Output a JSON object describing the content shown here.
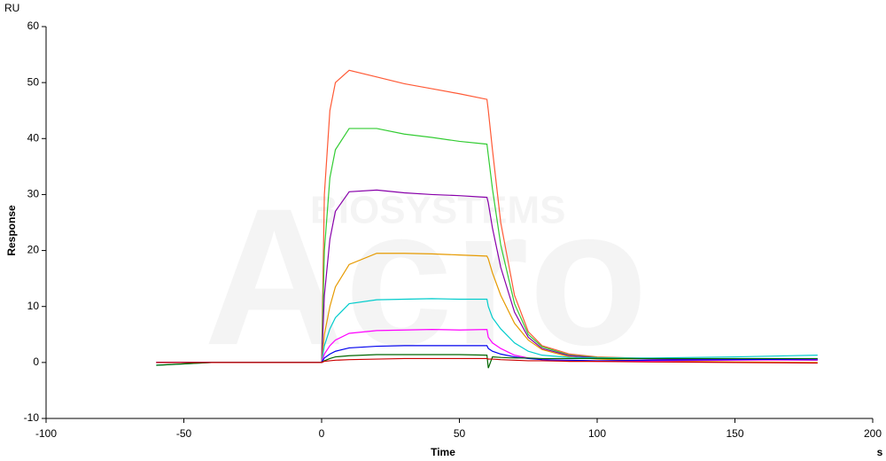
{
  "chart_data": {
    "type": "line",
    "y_unit": "RU",
    "y_label": "Response",
    "x_label": "Time",
    "x_unit": "s",
    "watermark": [
      "Acro",
      "BIOSYSTEMS"
    ],
    "xlim": [
      -100,
      200
    ],
    "xticks": [
      -100,
      -50,
      0,
      50,
      100,
      150,
      200
    ],
    "ylim": [
      -10,
      60
    ],
    "yticks": [
      -10,
      0,
      10,
      20,
      30,
      40,
      50,
      60
    ],
    "x": [
      -60,
      -40,
      -20,
      -1,
      0,
      1,
      3,
      5,
      10,
      20,
      30,
      40,
      50,
      60,
      60.5,
      62,
      65,
      70,
      75,
      80,
      90,
      100,
      120,
      150,
      180
    ],
    "series": [
      {
        "color": "#ff5a36",
        "values": [
          0,
          0,
          0,
          0,
          0,
          30,
          45,
          50,
          52.2,
          51,
          49.8,
          48.9,
          48,
          47,
          45,
          38,
          25,
          12,
          5.5,
          3,
          1.5,
          1,
          0.7,
          0.6,
          0.5
        ]
      },
      {
        "color": "#33cc33",
        "values": [
          0,
          0,
          0,
          0,
          0,
          20,
          33,
          38,
          41.8,
          41.8,
          40.8,
          40.2,
          39.5,
          39,
          37,
          31,
          21,
          10.5,
          5,
          2.8,
          1.3,
          0.9,
          0.7,
          0.6,
          0.5
        ]
      },
      {
        "color": "#8800aa",
        "values": [
          0,
          0,
          0,
          0,
          0,
          12,
          22,
          27,
          30.5,
          30.8,
          30.3,
          30,
          29.8,
          29.5,
          28.5,
          24,
          17,
          9,
          4.5,
          2.5,
          1.2,
          0.8,
          0.6,
          0.5,
          0.4
        ]
      },
      {
        "color": "#e69a00",
        "values": [
          0,
          0,
          0,
          0,
          0,
          5,
          10,
          13.5,
          17.5,
          19.5,
          19.5,
          19.4,
          19.2,
          19,
          18.5,
          16,
          12,
          7,
          4,
          2.3,
          1,
          0.6,
          0.3,
          0.1,
          0
        ]
      },
      {
        "color": "#00cccc",
        "values": [
          -0.5,
          0,
          0,
          0,
          0,
          3,
          6,
          8,
          10.5,
          11.2,
          11.3,
          11.4,
          11.3,
          11.3,
          10,
          8,
          6,
          3.5,
          2,
          1.3,
          0.9,
          0.8,
          0.8,
          1,
          1.3
        ]
      },
      {
        "color": "#ff00ff",
        "values": [
          0,
          0,
          0,
          0,
          0,
          1.5,
          3,
          4,
          5.2,
          5.7,
          5.8,
          5.9,
          5.8,
          5.9,
          4.5,
          3.5,
          2.5,
          1.3,
          0.8,
          0.5,
          0.3,
          0.2,
          0.3,
          0.4,
          0.5
        ]
      },
      {
        "color": "#0000ee",
        "values": [
          0,
          0,
          0,
          0,
          0,
          0.8,
          1.5,
          2,
          2.6,
          2.9,
          3,
          3,
          3,
          3,
          2.5,
          2,
          1.5,
          1,
          0.7,
          0.5,
          0.4,
          0.3,
          0.4,
          0.5,
          0.6
        ]
      },
      {
        "color": "#006600",
        "values": [
          -0.5,
          0,
          0,
          0,
          0,
          0.3,
          0.7,
          1,
          1.2,
          1.4,
          1.4,
          1.4,
          1.4,
          1.3,
          -1,
          1,
          0.9,
          0.8,
          0.8,
          0.7,
          0.7,
          0.7,
          0.7,
          0.7,
          0.7
        ]
      },
      {
        "color": "#cc0000",
        "values": [
          0,
          0,
          0,
          0,
          0,
          0.2,
          0.3,
          0.4,
          0.5,
          0.6,
          0.7,
          0.7,
          0.7,
          0.7,
          0.6,
          0.6,
          0.5,
          0.4,
          0.3,
          0.3,
          0.2,
          0.2,
          0.1,
          0,
          -0.1
        ]
      }
    ]
  }
}
